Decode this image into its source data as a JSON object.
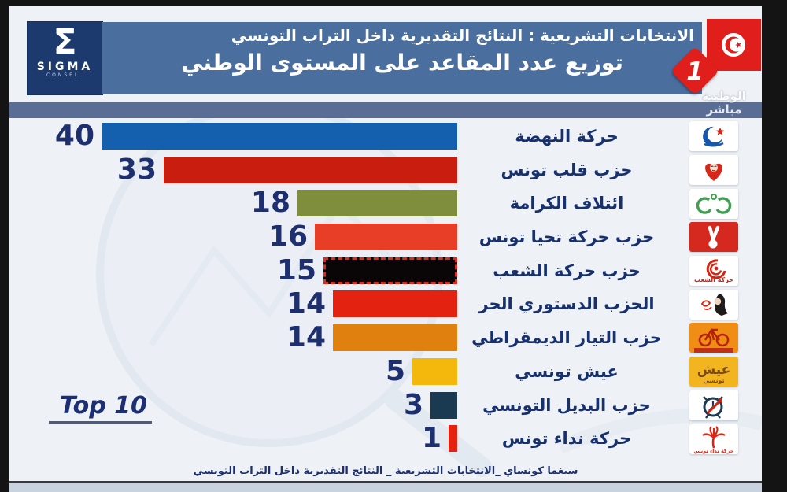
{
  "header": {
    "line1": "الانتخابات التشريعية : النتائج التقديرية داخل التراب التونسي",
    "line2": "توزيع عدد المقاعد على المستوى الوطني",
    "sigma": {
      "symbol": "Σ",
      "name": "SIGMA",
      "sub": "CONSEIL"
    },
    "channel": {
      "number": "1"
    }
  },
  "watermark": {
    "line1": "الوطنية",
    "line2": "مباشر"
  },
  "chart": {
    "top_label": "Top 10"
  },
  "footer": {
    "caption": "سيغما كونساي _الانتخابات التشريعية _ النتائج التقديرية داخل التراب التونسي"
  },
  "colors": {
    "header_band": "#4a6f9f",
    "sigma_box": "#1c3a6e",
    "slate_band": "#5a6d94",
    "value_text": "#1d2f6e",
    "label_text": "#17306e",
    "background": "#eef1f5"
  },
  "parties": [
    {
      "name": "حركة النهضة",
      "seats": 40,
      "color": "#1560ae",
      "logo": "ennahdha"
    },
    {
      "name": "حزب قلب تونس",
      "seats": 33,
      "color": "#c91e0f",
      "logo": "qalb"
    },
    {
      "name": "ائتلاف الكرامة",
      "seats": 18,
      "color": "#7e8e3d",
      "logo": "karama"
    },
    {
      "name": "حزب حركة تحيا تونس",
      "seats": 16,
      "color": "#e83e28",
      "logo": "tahya"
    },
    {
      "name": "حزب حركة الشعب",
      "seats": 15,
      "color": "#0a0607",
      "logo": "chaab",
      "dashed": true,
      "dash_color": "#df2a1b"
    },
    {
      "name": "الحزب الدستوري الحر",
      "seats": 14,
      "color": "#e32310",
      "logo": "destour"
    },
    {
      "name": "حزب التيار الديمقراطي",
      "seats": 14,
      "color": "#e0800e",
      "logo": "courant"
    },
    {
      "name": "عيش تونسي",
      "seats": 5,
      "color": "#f4b70b",
      "logo": "aich"
    },
    {
      "name": "حزب البديل التونسي",
      "seats": 3,
      "color": "#1a3a52",
      "logo": "badil"
    },
    {
      "name": "حركة نداء تونس",
      "seats": 1,
      "color": "#e32310",
      "logo": "nidaa"
    }
  ],
  "chart_data": {
    "type": "bar",
    "orientation": "horizontal",
    "title": "توزيع عدد المقاعد على المستوى الوطني",
    "subtitle": "الانتخابات التشريعية : النتائج التقديرية داخل التراب التونسي",
    "categories": [
      "حركة النهضة",
      "حزب قلب تونس",
      "ائتلاف الكرامة",
      "حزب حركة تحيا تونس",
      "حزب حركة الشعب",
      "الحزب الدستوري الحر",
      "حزب التيار الديمقراطي",
      "عيش تونسي",
      "حزب البديل التونسي",
      "حركة نداء تونس"
    ],
    "values": [
      40,
      33,
      18,
      16,
      15,
      14,
      14,
      5,
      3,
      1
    ],
    "bar_colors": [
      "#1560ae",
      "#c91e0f",
      "#7e8e3d",
      "#e83e28",
      "#0a0607",
      "#e32310",
      "#e0800e",
      "#f4b70b",
      "#1a3a52",
      "#e32310"
    ],
    "xlim": [
      0,
      40
    ],
    "grid": false,
    "legend": false,
    "value_labels": "left-of-bar"
  }
}
